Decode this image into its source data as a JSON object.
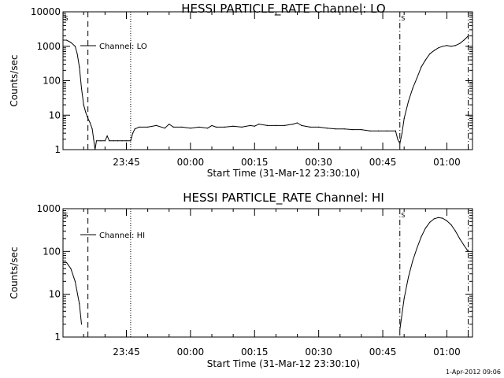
{
  "timestamp": "1-Apr-2012 09:06",
  "chart_data": [
    {
      "type": "line",
      "title": "HESSI PARTICLE_RATE Channel: LO",
      "xlabel": "Start Time (31-Mar-12 23:30:10)",
      "ylabel": "Counts/sec",
      "legend": "Channel: LO",
      "legend_position": "top-left",
      "yscale": "log",
      "ylim": [
        1,
        10000
      ],
      "xlim": [
        "23:30:10",
        "01:06:00"
      ],
      "y_ticks": [
        "1",
        "10",
        "100",
        "1000",
        "10000"
      ],
      "x_ticks": [
        "23:45",
        "00:00",
        "00:15",
        "00:30",
        "00:45",
        "01:00"
      ],
      "vlines": [
        {
          "time": "23:36:00",
          "style": "dashed"
        },
        {
          "time": "23:46:00",
          "style": "dotted"
        },
        {
          "time": "00:49:00",
          "style": "dash-dot"
        },
        {
          "time": "01:05:00",
          "style": "dash-dot"
        }
      ],
      "series": [
        {
          "name": "Channel: LO",
          "x": [
            "23:30:10",
            "23:31:00",
            "23:32:00",
            "23:33:00",
            "23:33:30",
            "23:34:00",
            "23:34:30",
            "23:35:00",
            "23:35:30",
            "23:36:00",
            "23:36:30",
            "23:37:00",
            "23:37:20",
            "23:37:40",
            "23:38:00",
            "23:39:00",
            "23:40:00",
            "23:40:30",
            "23:41:00",
            "23:42:00",
            "23:43:00",
            "23:44:00",
            "23:45:00",
            "23:46:00",
            "23:46:30",
            "23:47:00",
            "23:48:00",
            "23:50:00",
            "23:52:00",
            "23:54:00",
            "23:55:00",
            "23:56:00",
            "23:58:00",
            "00:00:00",
            "00:02:00",
            "00:04:00",
            "00:05:00",
            "00:06:00",
            "00:08:00",
            "00:10:00",
            "00:12:00",
            "00:14:00",
            "00:15:00",
            "00:16:00",
            "00:18:00",
            "00:20:00",
            "00:22:00",
            "00:24:00",
            "00:25:00",
            "00:26:00",
            "00:28:00",
            "00:30:00",
            "00:32:00",
            "00:34:00",
            "00:36:00",
            "00:38:00",
            "00:40:00",
            "00:42:00",
            "00:44:00",
            "00:46:00",
            "00:48:00",
            "00:48:30",
            "00:49:00",
            "00:49:30",
            "00:50:00",
            "00:51:00",
            "00:52:00",
            "00:53:00",
            "00:54:00",
            "00:55:00",
            "00:56:00",
            "00:57:00",
            "00:58:00",
            "00:59:00",
            "01:00:00",
            "01:01:00",
            "01:02:00",
            "01:03:00",
            "01:04:00",
            "01:05:00"
          ],
          "y": [
            1500,
            1500,
            1300,
            1000,
            600,
            250,
            60,
            20,
            12,
            8,
            6,
            4,
            2,
            1,
            1.8,
            1.8,
            1.8,
            2.5,
            1.8,
            1.8,
            1.8,
            1.8,
            1.8,
            1.8,
            3,
            4,
            4.5,
            4.5,
            5,
            4.2,
            5.5,
            4.5,
            4.5,
            4.2,
            4.5,
            4.2,
            5,
            4.5,
            4.5,
            4.8,
            4.5,
            5,
            4.8,
            5.5,
            5,
            5,
            5,
            5.5,
            6,
            5,
            4.5,
            4.5,
            4.2,
            4,
            4,
            3.8,
            3.8,
            3.5,
            3.5,
            3.5,
            3.5,
            2,
            1.5,
            3,
            8,
            25,
            60,
            120,
            250,
            400,
            600,
            750,
            900,
            1000,
            1050,
            1000,
            1050,
            1200,
            1500,
            2000
          ]
        }
      ]
    },
    {
      "type": "line",
      "title": "HESSI PARTICLE_RATE Channel: HI",
      "xlabel": "Start Time (31-Mar-12 23:30:10)",
      "ylabel": "Counts/sec",
      "legend": "Channel: HI",
      "legend_position": "top-left",
      "yscale": "log",
      "ylim": [
        1,
        1000
      ],
      "xlim": [
        "23:30:10",
        "01:06:00"
      ],
      "y_ticks": [
        "1",
        "10",
        "100",
        "1000"
      ],
      "x_ticks": [
        "23:45",
        "00:00",
        "00:15",
        "00:30",
        "00:45",
        "01:00"
      ],
      "vlines": [
        {
          "time": "23:36:00",
          "style": "dashed"
        },
        {
          "time": "23:46:00",
          "style": "dotted"
        },
        {
          "time": "00:49:00",
          "style": "dash-dot"
        },
        {
          "time": "01:05:00",
          "style": "dash-dot"
        }
      ],
      "series": [
        {
          "name": "Channel: HI",
          "segments": [
            {
              "x": [
                "23:30:10",
                "23:31:00",
                "23:32:00",
                "23:33:00",
                "23:34:00",
                "23:34:30"
              ],
              "y": [
                55,
                55,
                40,
                20,
                6,
                2
              ]
            },
            {
              "x": [
                "00:49:00",
                "00:50:00",
                "00:51:00",
                "00:52:00",
                "00:53:00",
                "00:54:00",
                "00:55:00",
                "00:56:00",
                "00:57:00",
                "00:58:00",
                "00:59:00",
                "01:00:00",
                "01:01:00",
                "01:02:00",
                "01:03:00",
                "01:04:00",
                "01:05:00"
              ],
              "y": [
                1.5,
                8,
                25,
                60,
                120,
                220,
                350,
                480,
                580,
                620,
                600,
                520,
                420,
                300,
                200,
                140,
                100
              ]
            }
          ]
        }
      ]
    }
  ]
}
